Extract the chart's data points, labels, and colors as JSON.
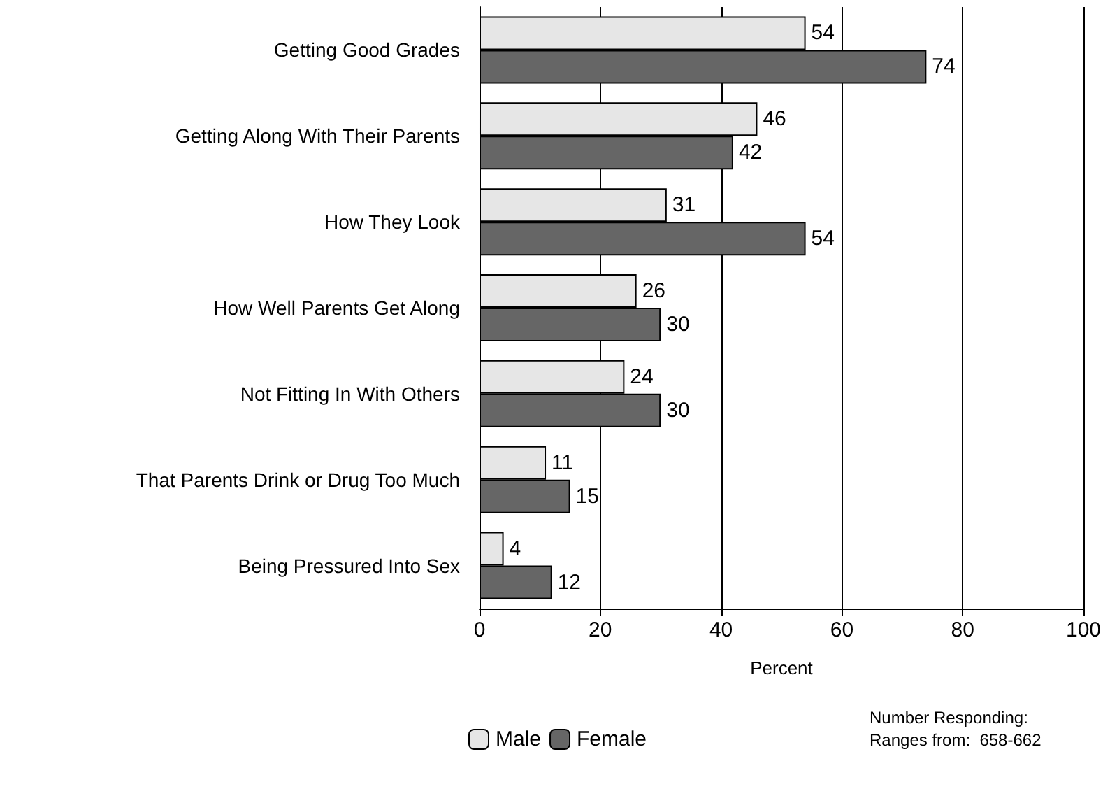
{
  "chart_data": {
    "type": "bar",
    "orientation": "horizontal",
    "categories": [
      "Getting Good Grades",
      "Getting Along With Their Parents",
      "How They Look",
      "How Well Parents Get Along",
      "Not Fitting In With Others",
      "That Parents Drink or Drug Too Much",
      "Being Pressured Into Sex"
    ],
    "series": [
      {
        "name": "Male",
        "color": "#e6e6e6",
        "values": [
          54,
          46,
          31,
          26,
          24,
          11,
          4
        ]
      },
      {
        "name": "Female",
        "color": "#666666",
        "values": [
          74,
          42,
          54,
          30,
          30,
          15,
          12
        ]
      }
    ],
    "xlabel": "Percent",
    "xlim": [
      0,
      100
    ],
    "xticks": [
      0,
      20,
      40,
      60,
      80,
      100
    ],
    "grid": "x",
    "data_labels": true,
    "legend": "bottom",
    "annotations": [
      "Number Responding:",
      "Ranges from:  658-662"
    ]
  }
}
